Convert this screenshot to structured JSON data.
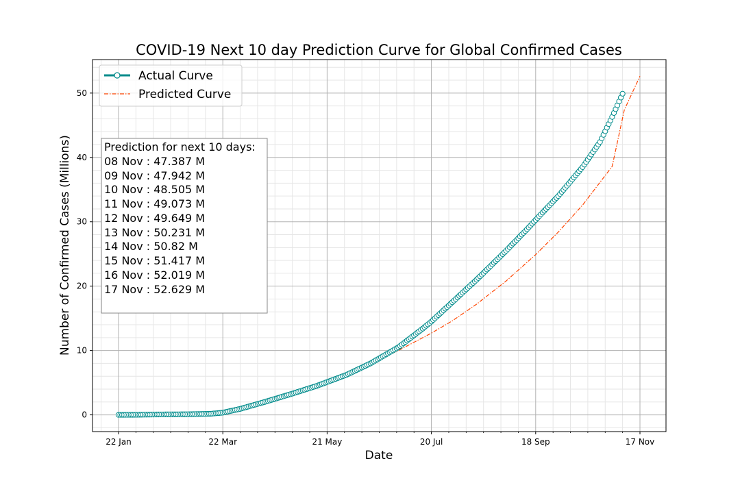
{
  "chart_data": {
    "type": "line",
    "title": "COVID-19 Next 10 day Prediction Curve for Global Confirmed Cases",
    "xlabel": "Date",
    "ylabel": "Number of Confirmed Cases (Millions)",
    "x_tick_labels": [
      "22 Jan",
      "22 Mar",
      "21 May",
      "20 Jul",
      "18 Sep",
      "17 Nov"
    ],
    "y_ticks": [
      0,
      10,
      20,
      30,
      40,
      50
    ],
    "x_axis": {
      "start": "2020-01-22",
      "end": "2020-11-17"
    },
    "ylim": [
      -2.6,
      55.2
    ],
    "grid": true,
    "legend_position": "top-left",
    "series": [
      {
        "name": "Actual Curve",
        "color": "#008b8b",
        "marker": "open-circle",
        "x": [
          "2020-01-22",
          "2020-02-01",
          "2020-02-15",
          "2020-03-01",
          "2020-03-15",
          "2020-03-22",
          "2020-04-01",
          "2020-04-15",
          "2020-05-01",
          "2020-05-15",
          "2020-05-21",
          "2020-06-01",
          "2020-06-15",
          "2020-07-01",
          "2020-07-15",
          "2020-07-20",
          "2020-08-01",
          "2020-08-15",
          "2020-09-01",
          "2020-09-15",
          "2020-09-18",
          "2020-10-01",
          "2020-10-15",
          "2020-10-25",
          "2020-11-01",
          "2020-11-07"
        ],
        "y": [
          0.0005,
          0.012,
          0.067,
          0.09,
          0.17,
          0.34,
          0.93,
          2.0,
          3.3,
          4.5,
          5.1,
          6.2,
          8.0,
          10.5,
          13.4,
          14.5,
          17.5,
          21.0,
          25.5,
          29.4,
          30.3,
          34.0,
          38.5,
          42.4,
          46.3,
          49.9
        ]
      },
      {
        "name": "Predicted Curve",
        "color": "#ff4500",
        "style": "dash-dot",
        "x": [
          "2020-01-22",
          "2020-02-15",
          "2020-03-01",
          "2020-03-22",
          "2020-04-15",
          "2020-05-01",
          "2020-05-21",
          "2020-06-01",
          "2020-06-15",
          "2020-07-01",
          "2020-07-20",
          "2020-08-01",
          "2020-08-15",
          "2020-09-01",
          "2020-09-18",
          "2020-10-01",
          "2020-10-15",
          "2020-11-01",
          "2020-11-08",
          "2020-11-17"
        ],
        "y": [
          0,
          0.07,
          0.09,
          0.34,
          2.0,
          3.3,
          5.1,
          6.2,
          8.0,
          10.0,
          12.7,
          14.6,
          17.2,
          20.8,
          24.9,
          28.4,
          32.6,
          38.6,
          47.387,
          52.629
        ]
      }
    ],
    "annotation": {
      "lines": [
        "Prediction for next 10 days:",
        "08 Nov : 47.387 M",
        "09 Nov : 47.942 M",
        "10 Nov : 48.505 M",
        "11 Nov : 49.073 M",
        "12 Nov : 49.649 M",
        "13 Nov : 50.231 M",
        "14 Nov : 50.82 M",
        "15 Nov : 51.417 M",
        "16 Nov : 52.019 M",
        "17 Nov : 52.629 M"
      ]
    }
  }
}
